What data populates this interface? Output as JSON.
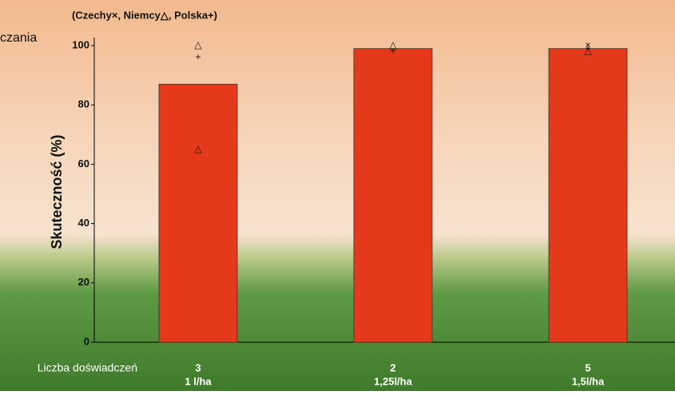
{
  "chart_data": {
    "type": "bar",
    "legend": "(Czechy×, Niemcy△, Polska+)",
    "left_text": "czania",
    "y_label": "Skuteczność (%)",
    "x_label": "Liczba doświadczeń",
    "categories": [
      "3",
      "2",
      "5"
    ],
    "doses": [
      "1 l/ha",
      "1,25l/ha",
      "1,5l/ha"
    ],
    "values": [
      87,
      99,
      99
    ],
    "color": "#e5391b",
    "ylim": [
      0,
      100
    ],
    "yticks": [
      0,
      20,
      40,
      60,
      80,
      100
    ],
    "series": [
      {
        "symbol": "×",
        "values": [
          [],
          [],
          [
            100
          ]
        ]
      },
      {
        "symbol": "△",
        "values": [
          [
            100,
            65
          ],
          [
            100
          ],
          [
            98
          ]
        ]
      },
      {
        "symbol": "+",
        "values": [
          [
            96
          ],
          [
            98
          ],
          [
            99
          ]
        ]
      }
    ]
  }
}
